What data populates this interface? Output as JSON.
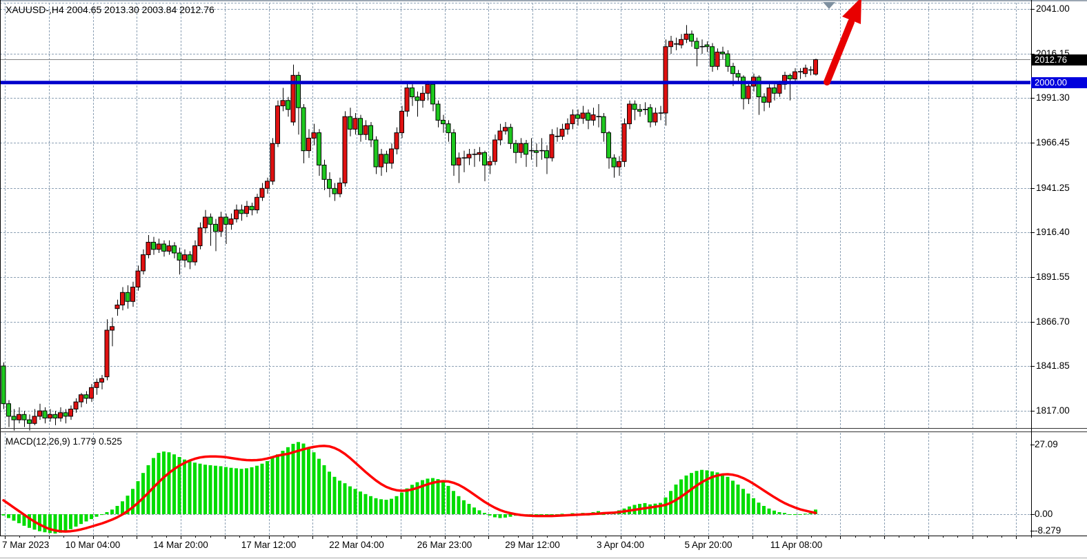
{
  "header": {
    "title": "XAUUSD-,H4  2004.65 2013.30 2003.84 2012.76"
  },
  "price_axis": {
    "current_badge": "2012.76",
    "level_badge": "2000.00",
    "tick_labels": [
      "2041.00",
      "2016.15",
      "1991.30",
      "1966.45",
      "1941.25",
      "1916.40",
      "1891.55",
      "1866.70",
      "1841.85",
      "1817.00"
    ]
  },
  "time_axis": {
    "tick_labels": [
      "7 Mar 2023",
      "10 Mar 04:00",
      "14 Mar 20:00",
      "17 Mar 12:00",
      "22 Mar 04:00",
      "26 Mar 23:00",
      "29 Mar 12:00",
      "3 Apr 04:00",
      "5 Apr 20:00",
      "11 Apr 08:00"
    ]
  },
  "macd_pane": {
    "label": "MACD(12,26,9) 1.779 0.525",
    "scale_labels": [
      "27.09",
      "0.00",
      "-8.279"
    ]
  },
  "colors": {
    "bg": "#FFFFFF",
    "grid": "#8CA0B4",
    "bull_candle": "#DF1111",
    "bear_candle": "#1EC81E",
    "wick": "#000000",
    "level_line": "#0000CC",
    "level_badge_bg": "#0000DD",
    "current_price_line": "#808080",
    "current_badge_bg": "#000000",
    "macd_histogram": "#00DC00",
    "macd_signal": "#FF0000",
    "arrow": "#E80000",
    "shift_marker": "#7E90A0",
    "axis_line": "#000000"
  },
  "chart_data": {
    "type": "candlestick",
    "symbol": "XAUUSD-",
    "timeframe": "H4",
    "last_bar": {
      "open": 2004.65,
      "high": 2013.3,
      "low": 2003.84,
      "close": 2012.76
    },
    "y_axis": {
      "min": 1817.0,
      "max": 2041.0,
      "tick_values": [
        2041.0,
        2016.15,
        1991.3,
        1966.45,
        1941.25,
        1916.4,
        1891.55,
        1866.7,
        1841.85,
        1817.0
      ]
    },
    "x_axis": {
      "tick_labels": [
        "7 Mar 2023",
        "10 Mar 04:00",
        "14 Mar 20:00",
        "17 Mar 12:00",
        "22 Mar 04:00",
        "26 Mar 23:00",
        "29 Mar 12:00",
        "3 Apr 04:00",
        "5 Apr 20:00",
        "11 Apr 08:00"
      ]
    },
    "horizontal_level": 2000.0,
    "current_price": 2012.76,
    "annotations": [
      {
        "type": "up-trend-arrow",
        "color": "#E80000"
      },
      {
        "type": "chart-shift-marker",
        "color": "#7E90A0"
      }
    ],
    "candles": [
      [
        1842,
        1844,
        1818,
        1821
      ],
      [
        1821,
        1823,
        1808,
        1814
      ],
      [
        1814,
        1818,
        1806,
        1812
      ],
      [
        1812,
        1819,
        1810,
        1815
      ],
      [
        1815,
        1817,
        1808,
        1812
      ],
      [
        1812,
        1815,
        1806,
        1810
      ],
      [
        1810,
        1818,
        1809,
        1814
      ],
      [
        1814,
        1821,
        1812,
        1817
      ],
      [
        1817,
        1819,
        1810,
        1813
      ],
      [
        1813,
        1818,
        1811,
        1815
      ],
      [
        1815,
        1817,
        1809,
        1813
      ],
      [
        1813,
        1819,
        1811,
        1816
      ],
      [
        1816,
        1818,
        1810,
        1814
      ],
      [
        1814,
        1820,
        1812,
        1818
      ],
      [
        1818,
        1824,
        1816,
        1822
      ],
      [
        1822,
        1827,
        1819,
        1826
      ],
      [
        1826,
        1828,
        1821,
        1824
      ],
      [
        1824,
        1832,
        1822,
        1830
      ],
      [
        1830,
        1835,
        1826,
        1833
      ],
      [
        1833,
        1837,
        1829,
        1835
      ],
      [
        1836,
        1868,
        1834,
        1862
      ],
      [
        1862,
        1869,
        1853,
        1864
      ],
      [
        1874,
        1879,
        1870,
        1876
      ],
      [
        1876,
        1886,
        1873,
        1883
      ],
      [
        1883,
        1887,
        1874,
        1878
      ],
      [
        1878,
        1889,
        1875,
        1886
      ],
      [
        1886,
        1898,
        1884,
        1895
      ],
      [
        1895,
        1907,
        1893,
        1904
      ],
      [
        1904,
        1915,
        1902,
        1911
      ],
      [
        1911,
        1914,
        1904,
        1907
      ],
      [
        1907,
        1913,
        1905,
        1910
      ],
      [
        1910,
        1912,
        1903,
        1906
      ],
      [
        1906,
        1912,
        1904,
        1909
      ],
      [
        1909,
        1911,
        1902,
        1905
      ],
      [
        1905,
        1908,
        1893,
        1901
      ],
      [
        1901,
        1907,
        1897,
        1904
      ],
      [
        1904,
        1906,
        1896,
        1900
      ],
      [
        1900,
        1912,
        1898,
        1909
      ],
      [
        1909,
        1922,
        1907,
        1919
      ],
      [
        1919,
        1929,
        1916,
        1925
      ],
      [
        1925,
        1927,
        1909,
        1921
      ],
      [
        1921,
        1924,
        1906,
        1917
      ],
      [
        1917,
        1928,
        1914,
        1925
      ],
      [
        1925,
        1927,
        1910,
        1921
      ],
      [
        1921,
        1927,
        1918,
        1924
      ],
      [
        1924,
        1932,
        1922,
        1929
      ],
      [
        1929,
        1932,
        1923,
        1927
      ],
      [
        1927,
        1934,
        1925,
        1931
      ],
      [
        1931,
        1933,
        1926,
        1929
      ],
      [
        1929,
        1938,
        1927,
        1936
      ],
      [
        1936,
        1944,
        1934,
        1941
      ],
      [
        1941,
        1947,
        1938,
        1945
      ],
      [
        1945,
        1969,
        1943,
        1966
      ],
      [
        1966,
        1990,
        1964,
        1987
      ],
      [
        1987,
        1997,
        1984,
        1990
      ],
      [
        1990,
        1992,
        1981,
        1985
      ],
      [
        1978,
        2010,
        1976,
        2004
      ],
      [
        2004,
        2006,
        1971,
        1986
      ],
      [
        1986,
        1988,
        1955,
        1962
      ],
      [
        1962,
        1974,
        1958,
        1969
      ],
      [
        1969,
        1977,
        1965,
        1972
      ],
      [
        1972,
        1974,
        1948,
        1954
      ],
      [
        1954,
        1957,
        1940,
        1946
      ],
      [
        1946,
        1950,
        1936,
        1941
      ],
      [
        1941,
        1944,
        1934,
        1938
      ],
      [
        1938,
        1947,
        1936,
        1944
      ],
      [
        1944,
        1984,
        1942,
        1981
      ],
      [
        1981,
        1986,
        1970,
        1974
      ],
      [
        1974,
        1983,
        1971,
        1980
      ],
      [
        1980,
        1982,
        1967,
        1971
      ],
      [
        1971,
        1979,
        1968,
        1976
      ],
      [
        1976,
        1978,
        1964,
        1968
      ],
      [
        1968,
        1970,
        1949,
        1953
      ],
      [
        1953,
        1963,
        1948,
        1960
      ],
      [
        1960,
        1962,
        1950,
        1955
      ],
      [
        1955,
        1966,
        1952,
        1963
      ],
      [
        1963,
        1975,
        1960,
        1972
      ],
      [
        1972,
        1987,
        1969,
        1984
      ],
      [
        1984,
        2000,
        1981,
        1997
      ],
      [
        1997,
        1999,
        1987,
        1992
      ],
      [
        1992,
        1995,
        1981,
        1990
      ],
      [
        1990,
        1998,
        1986,
        1994
      ],
      [
        1994,
        2001,
        1990,
        1999
      ],
      [
        1999,
        2000,
        1984,
        1988
      ],
      [
        1988,
        1990,
        1975,
        1979
      ],
      [
        1979,
        1982,
        1972,
        1977
      ],
      [
        1977,
        1979,
        1967,
        1972
      ],
      [
        1972,
        1974,
        1948,
        1954
      ],
      [
        1954,
        1961,
        1944,
        1958
      ],
      [
        1958,
        1962,
        1950,
        1958
      ],
      [
        1958,
        1963,
        1954,
        1960
      ],
      [
        1960,
        1963,
        1953,
        1960
      ],
      [
        1960,
        1964,
        1956,
        1961
      ],
      [
        1961,
        1962,
        1945,
        1954
      ],
      [
        1954,
        1959,
        1949,
        1956
      ],
      [
        1956,
        1971,
        1954,
        1968
      ],
      [
        1968,
        1977,
        1965,
        1973
      ],
      [
        1973,
        1978,
        1971,
        1975
      ],
      [
        1975,
        1977,
        1963,
        1966
      ],
      [
        1966,
        1968,
        1955,
        1961
      ],
      [
        1961,
        1969,
        1958,
        1966
      ],
      [
        1966,
        1968,
        1953,
        1960
      ],
      [
        1962,
        1969,
        1957,
        1962
      ],
      [
        1962,
        1966,
        1953,
        1961
      ],
      [
        1962,
        1969,
        1957,
        1962
      ],
      [
        1962,
        1965,
        1949,
        1958
      ],
      [
        1958,
        1974,
        1956,
        1971
      ],
      [
        1970,
        1975,
        1967,
        1970
      ],
      [
        1970,
        1977,
        1968,
        1974
      ],
      [
        1974,
        1980,
        1971,
        1977
      ],
      [
        1977,
        1985,
        1974,
        1982
      ],
      [
        1982,
        1985,
        1976,
        1980
      ],
      [
        1980,
        1987,
        1977,
        1983
      ],
      [
        1983,
        1985,
        1974,
        1979
      ],
      [
        1979,
        1986,
        1976,
        1982
      ],
      [
        1981,
        1988,
        1975,
        1981
      ],
      [
        1981,
        1983,
        1967,
        1972
      ],
      [
        1972,
        1973,
        1952,
        1958
      ],
      [
        1958,
        1960,
        1947,
        1953
      ],
      [
        1953,
        1959,
        1948,
        1956
      ],
      [
        1956,
        1980,
        1953,
        1977
      ],
      [
        1977,
        1990,
        1974,
        1988
      ],
      [
        1988,
        1990,
        1979,
        1985
      ],
      [
        1985,
        1988,
        1981,
        1984
      ],
      [
        1985,
        1989,
        1982,
        1985
      ],
      [
        1986,
        1988,
        1975,
        1978
      ],
      [
        1978,
        1986,
        1976,
        1983
      ],
      [
        1983,
        1987,
        1979,
        1983
      ],
      [
        1983,
        2024,
        1976,
        2020
      ],
      [
        2020,
        2026,
        2016,
        2023
      ],
      [
        2021.5,
        2025,
        2018,
        2021.5
      ],
      [
        2021,
        2027,
        2019,
        2024
      ],
      [
        2024,
        2032,
        2022,
        2027
      ],
      [
        2027,
        2029,
        2020,
        2023
      ],
      [
        2023,
        2025,
        2009,
        2019
      ],
      [
        2020,
        2024,
        2016,
        2020
      ],
      [
        2021,
        2023,
        2017,
        2020
      ],
      [
        2020,
        2022,
        2006,
        2009
      ],
      [
        2009,
        2019,
        2007,
        2017
      ],
      [
        2017,
        2020,
        2013,
        2016
      ],
      [
        2016,
        2018,
        2006,
        2009
      ],
      [
        2009,
        2011,
        1998,
        2005
      ],
      [
        2005,
        2007,
        2000,
        2003
      ],
      [
        2003,
        2004,
        1985,
        1991
      ],
      [
        1991,
        2000,
        1988,
        1998
      ],
      [
        1998,
        2005,
        1995,
        2003
      ],
      [
        2003,
        2004,
        1982,
        1992
      ],
      [
        1992,
        1994,
        1984,
        1989
      ],
      [
        1989,
        1999,
        1986,
        1997
      ],
      [
        1997,
        1999,
        1990,
        1994
      ],
      [
        1994,
        2001,
        1992,
        1999
      ],
      [
        1999,
        2006,
        1996,
        2004
      ],
      [
        2004,
        2005,
        1990,
        2002
      ],
      [
        2002,
        2008,
        2000,
        2006
      ],
      [
        2006,
        2008,
        2002,
        2006
      ],
      [
        2005,
        2010,
        2003,
        2008
      ],
      [
        2007,
        2009,
        2004,
        2007
      ],
      [
        2004.65,
        2013.3,
        2003.84,
        2012.76
      ]
    ],
    "macd": {
      "params": "12,26,9",
      "main_last": 1.779,
      "signal_last": 0.525,
      "y_scale": {
        "max_label": 27.09,
        "zero": 0.0,
        "min_label": -8.279
      },
      "histogram": [
        -0.5,
        -1.5,
        -2.5,
        -3.5,
        -4.5,
        -5.3,
        -6.0,
        -6.6,
        -7.0,
        -7.3,
        -7.5,
        -7.2,
        -6.6,
        -5.8,
        -4.8,
        -3.8,
        -2.8,
        -1.9,
        -1.0,
        -0.3,
        0.8,
        1.8,
        3.2,
        5.0,
        7.2,
        9.8,
        12.8,
        16.0,
        19.0,
        21.8,
        23.8,
        24.3,
        24.0,
        23.2,
        22.2,
        21.2,
        20.5,
        20.0,
        19.6,
        19.2,
        19.0,
        18.8,
        18.6,
        18.3,
        18.0,
        17.8,
        17.6,
        17.8,
        18.2,
        18.8,
        19.6,
        20.6,
        21.8,
        23.2,
        24.6,
        26.0,
        27.3,
        28.0,
        27.4,
        26.0,
        24.0,
        21.5,
        19.0,
        16.5,
        14.5,
        13.0,
        12.0,
        10.8,
        9.8,
        8.8,
        7.8,
        7.0,
        6.2,
        5.8,
        5.6,
        6.0,
        7.0,
        8.4,
        10.0,
        11.4,
        12.4,
        13.2,
        13.8,
        14.0,
        13.6,
        12.6,
        11.0,
        9.0,
        7.0,
        5.4,
        4.0,
        2.6,
        1.5,
        0.5,
        -0.5,
        -1.2,
        -1.5,
        -1.3,
        -1.0,
        -0.6,
        -0.3,
        -0.4,
        -0.3,
        -0.4,
        -0.3,
        -0.8,
        -0.4,
        -0.2,
        0.2,
        -0.3,
        0.4,
        -0.4,
        0.5,
        -0.5,
        0.8,
        1.2,
        -0.3,
        0.5,
        1.0,
        1.5,
        2.2,
        3.0,
        3.6,
        4.0,
        4.3,
        3.8,
        4.1,
        4.4,
        6.5,
        9.0,
        11.5,
        13.5,
        15.0,
        16.0,
        16.8,
        17.2,
        17.0,
        16.6,
        16.2,
        15.5,
        14.5,
        13.0,
        11.5,
        9.8,
        8.0,
        6.2,
        4.5,
        3.2,
        2.2,
        1.4,
        0.8,
        0.5,
        -0.2,
        -0.3,
        -0.2,
        0.2,
        0.4,
        1.8
      ],
      "signal": [
        5.4,
        4.0,
        2.6,
        1.2,
        -0.2,
        -1.6,
        -2.9,
        -4.0,
        -5.0,
        -5.8,
        -6.3,
        -6.6,
        -6.7,
        -6.6,
        -6.3,
        -5.9,
        -5.4,
        -4.8,
        -4.2,
        -3.6,
        -2.9,
        -2.1,
        -1.2,
        -0.1,
        1.2,
        2.7,
        4.4,
        6.3,
        8.3,
        10.4,
        12.4,
        14.3,
        16.0,
        17.5,
        18.8,
        19.9,
        20.8,
        21.5,
        22.0,
        22.3,
        22.4,
        22.4,
        22.3,
        22.1,
        21.8,
        21.5,
        21.2,
        21.0,
        20.9,
        21.0,
        21.2,
        21.6,
        22.1,
        22.7,
        23.1,
        23.4,
        24.0,
        24.6,
        25.2,
        25.7,
        26.1,
        26.4,
        26.5,
        26.3,
        25.7,
        24.7,
        23.4,
        21.8,
        20.0,
        18.2,
        16.4,
        14.7,
        13.1,
        11.7,
        10.6,
        9.8,
        9.3,
        9.1,
        9.2,
        9.6,
        10.2,
        10.9,
        11.6,
        12.2,
        12.6,
        12.8,
        12.7,
        12.2,
        11.4,
        10.3,
        9.0,
        7.6,
        6.2,
        4.8,
        3.6,
        2.5,
        1.6,
        0.9,
        0.4,
        0.0,
        -0.3,
        -0.5,
        -0.6,
        -0.7,
        -0.7,
        -0.7,
        -0.7,
        -0.6,
        -0.5,
        -0.4,
        -0.3,
        -0.2,
        -0.1,
        0.0,
        0.1,
        0.2,
        0.4,
        0.5,
        0.6,
        0.8,
        1.1,
        1.4,
        1.7,
        2.0,
        2.3,
        2.6,
        2.9,
        3.2,
        3.6,
        4.4,
        5.5,
        6.8,
        8.2,
        9.7,
        11.1,
        12.4,
        13.5,
        14.4,
        15.0,
        15.4,
        15.5,
        15.3,
        14.8,
        14.0,
        13.0,
        11.8,
        10.5,
        9.2,
        7.9,
        6.6,
        5.4,
        4.3,
        3.4,
        2.6,
        1.9,
        1.4,
        0.9,
        0.5
      ]
    }
  }
}
